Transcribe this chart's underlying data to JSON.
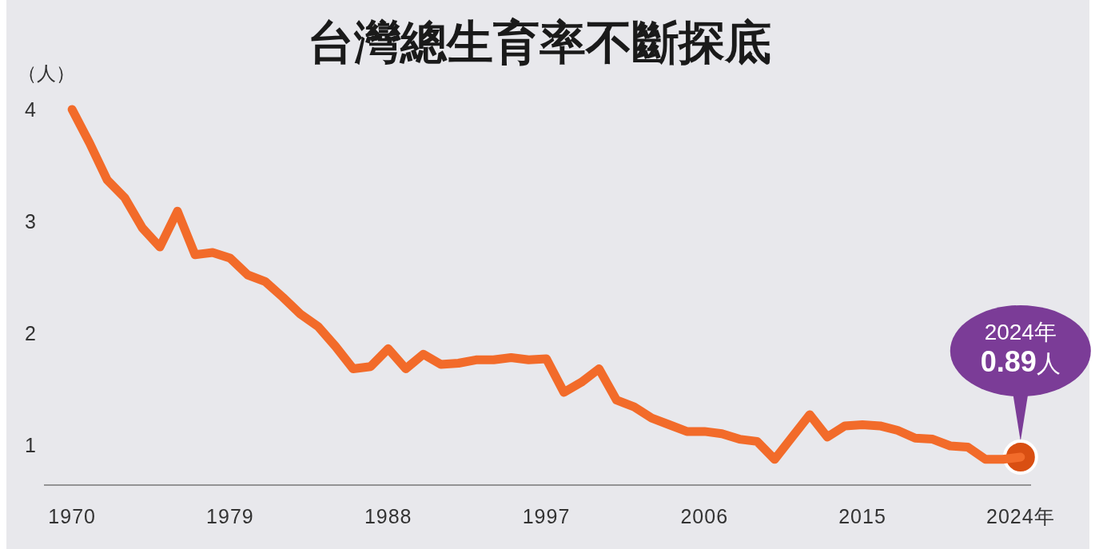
{
  "chart_data": {
    "type": "line",
    "title": "台灣總生育率不斷探底",
    "ylabel": "（人）",
    "x": [
      1970,
      1971,
      1972,
      1973,
      1974,
      1975,
      1976,
      1977,
      1978,
      1979,
      1980,
      1981,
      1982,
      1983,
      1984,
      1985,
      1986,
      1987,
      1988,
      1989,
      1990,
      1991,
      1992,
      1993,
      1994,
      1995,
      1996,
      1997,
      1998,
      1999,
      2000,
      2001,
      2002,
      2003,
      2004,
      2005,
      2006,
      2007,
      2008,
      2009,
      2010,
      2011,
      2012,
      2013,
      2014,
      2015,
      2016,
      2017,
      2018,
      2019,
      2020,
      2021,
      2022,
      2023,
      2024
    ],
    "series": [
      {
        "color": "#f26b2a",
        "values": [
          4.0,
          3.7,
          3.37,
          3.21,
          2.94,
          2.77,
          3.09,
          2.7,
          2.72,
          2.67,
          2.52,
          2.46,
          2.32,
          2.17,
          2.06,
          1.88,
          1.68,
          1.7,
          1.86,
          1.68,
          1.81,
          1.72,
          1.73,
          1.76,
          1.76,
          1.78,
          1.76,
          1.77,
          1.47,
          1.56,
          1.68,
          1.4,
          1.34,
          1.24,
          1.18,
          1.12,
          1.12,
          1.1,
          1.05,
          1.03,
          0.87,
          1.07,
          1.27,
          1.07,
          1.17,
          1.18,
          1.17,
          1.13,
          1.06,
          1.05,
          0.99,
          0.98,
          0.87,
          0.87,
          0.89
        ]
      }
    ],
    "xlim": [
      1968.4,
      2024.6
    ],
    "ylim": [
      0.64,
      4
    ],
    "xticks": [
      1970,
      1979,
      1988,
      1997,
      2006,
      2015,
      {
        "value": 2024,
        "label": "2024年"
      }
    ],
    "yticks": [
      1,
      2,
      3,
      4
    ],
    "annotations": [
      {
        "text": "2024年 **0.89**人",
        "x": 2024,
        "y": 0.89
      }
    ]
  }
}
